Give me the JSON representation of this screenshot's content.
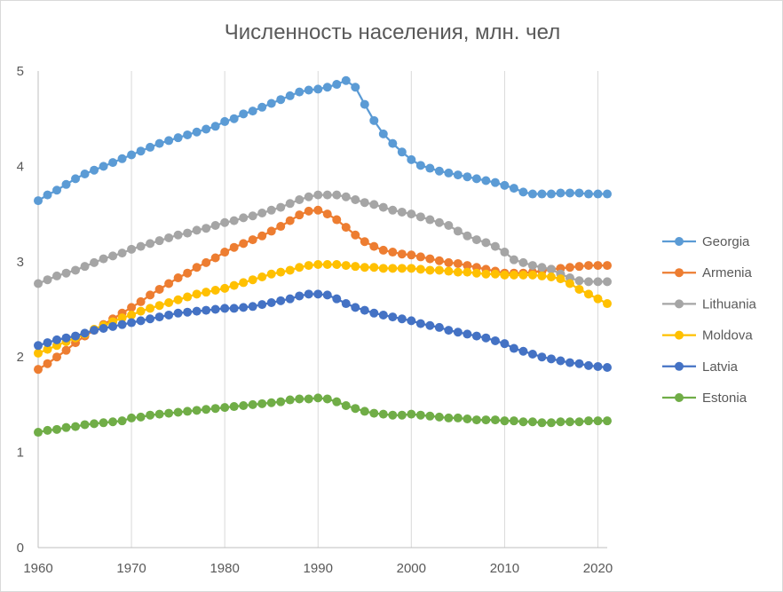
{
  "chart_data": {
    "type": "line",
    "title": "Численность населения, млн. чел",
    "xlabel": "",
    "ylabel": "",
    "xlim": [
      1960,
      2021
    ],
    "ylim": [
      0,
      5
    ],
    "x_ticks": [
      1960,
      1970,
      1980,
      1990,
      2000,
      2010,
      2020
    ],
    "y_ticks": [
      0,
      1,
      2,
      3,
      4,
      5
    ],
    "grid": "vertical",
    "legend_position": "right",
    "x": [
      1960,
      1961,
      1962,
      1963,
      1964,
      1965,
      1966,
      1967,
      1968,
      1969,
      1970,
      1971,
      1972,
      1973,
      1974,
      1975,
      1976,
      1977,
      1978,
      1979,
      1980,
      1981,
      1982,
      1983,
      1984,
      1985,
      1986,
      1987,
      1988,
      1989,
      1990,
      1991,
      1992,
      1993,
      1994,
      1995,
      1996,
      1997,
      1998,
      1999,
      2000,
      2001,
      2002,
      2003,
      2004,
      2005,
      2006,
      2007,
      2008,
      2009,
      2010,
      2011,
      2012,
      2013,
      2014,
      2015,
      2016,
      2017,
      2018,
      2019,
      2020,
      2021
    ],
    "series": [
      {
        "name": "Georgia",
        "color": "#5b9bd5",
        "values": [
          3.64,
          3.7,
          3.75,
          3.81,
          3.87,
          3.92,
          3.96,
          4.0,
          4.04,
          4.08,
          4.12,
          4.16,
          4.2,
          4.24,
          4.27,
          4.3,
          4.33,
          4.36,
          4.39,
          4.42,
          4.47,
          4.5,
          4.55,
          4.58,
          4.62,
          4.66,
          4.7,
          4.74,
          4.78,
          4.8,
          4.81,
          4.83,
          4.86,
          4.9,
          4.83,
          4.65,
          4.48,
          4.34,
          4.24,
          4.15,
          4.07,
          4.01,
          3.98,
          3.95,
          3.93,
          3.91,
          3.89,
          3.87,
          3.85,
          3.83,
          3.8,
          3.77,
          3.73,
          3.71,
          3.71,
          3.71,
          3.72,
          3.72,
          3.72,
          3.71,
          3.71,
          3.71
        ]
      },
      {
        "name": "Armenia",
        "color": "#ed7d31",
        "values": [
          1.87,
          1.93,
          2.0,
          2.07,
          2.15,
          2.22,
          2.28,
          2.34,
          2.4,
          2.46,
          2.52,
          2.58,
          2.65,
          2.71,
          2.77,
          2.83,
          2.88,
          2.94,
          2.99,
          3.04,
          3.1,
          3.15,
          3.19,
          3.23,
          3.27,
          3.32,
          3.37,
          3.43,
          3.49,
          3.53,
          3.54,
          3.5,
          3.44,
          3.36,
          3.28,
          3.21,
          3.16,
          3.12,
          3.1,
          3.08,
          3.07,
          3.05,
          3.03,
          3.01,
          2.99,
          2.98,
          2.96,
          2.94,
          2.92,
          2.9,
          2.88,
          2.88,
          2.88,
          2.89,
          2.9,
          2.92,
          2.93,
          2.94,
          2.95,
          2.96,
          2.96,
          2.96
        ]
      },
      {
        "name": "Lithuania",
        "color": "#a5a5a5",
        "values": [
          2.77,
          2.81,
          2.85,
          2.88,
          2.91,
          2.95,
          2.99,
          3.03,
          3.06,
          3.09,
          3.13,
          3.16,
          3.19,
          3.22,
          3.25,
          3.28,
          3.3,
          3.33,
          3.35,
          3.38,
          3.41,
          3.43,
          3.46,
          3.48,
          3.51,
          3.54,
          3.57,
          3.61,
          3.65,
          3.68,
          3.7,
          3.7,
          3.7,
          3.68,
          3.65,
          3.62,
          3.6,
          3.57,
          3.54,
          3.52,
          3.5,
          3.47,
          3.44,
          3.41,
          3.38,
          3.32,
          3.27,
          3.23,
          3.2,
          3.16,
          3.1,
          3.02,
          2.99,
          2.96,
          2.94,
          2.92,
          2.87,
          2.83,
          2.8,
          2.79,
          2.79,
          2.79
        ]
      },
      {
        "name": "Moldova",
        "color": "#ffc000",
        "values": [
          2.04,
          2.08,
          2.12,
          2.16,
          2.2,
          2.24,
          2.29,
          2.33,
          2.37,
          2.41,
          2.44,
          2.48,
          2.51,
          2.54,
          2.57,
          2.6,
          2.63,
          2.66,
          2.68,
          2.7,
          2.72,
          2.75,
          2.78,
          2.81,
          2.84,
          2.87,
          2.89,
          2.91,
          2.94,
          2.96,
          2.97,
          2.97,
          2.97,
          2.96,
          2.95,
          2.94,
          2.94,
          2.93,
          2.93,
          2.93,
          2.93,
          2.92,
          2.91,
          2.91,
          2.9,
          2.89,
          2.89,
          2.88,
          2.87,
          2.87,
          2.86,
          2.86,
          2.86,
          2.86,
          2.85,
          2.84,
          2.82,
          2.77,
          2.71,
          2.66,
          2.61,
          2.56
        ]
      },
      {
        "name": "Latvia",
        "color": "#4472c4",
        "values": [
          2.12,
          2.15,
          2.18,
          2.2,
          2.22,
          2.25,
          2.28,
          2.3,
          2.32,
          2.34,
          2.36,
          2.38,
          2.4,
          2.42,
          2.44,
          2.46,
          2.47,
          2.48,
          2.49,
          2.5,
          2.51,
          2.51,
          2.52,
          2.53,
          2.55,
          2.57,
          2.59,
          2.61,
          2.64,
          2.66,
          2.66,
          2.65,
          2.61,
          2.56,
          2.52,
          2.49,
          2.46,
          2.44,
          2.42,
          2.4,
          2.38,
          2.35,
          2.33,
          2.31,
          2.28,
          2.26,
          2.24,
          2.22,
          2.2,
          2.17,
          2.14,
          2.09,
          2.06,
          2.03,
          2.0,
          1.98,
          1.96,
          1.94,
          1.93,
          1.91,
          1.9,
          1.89
        ]
      },
      {
        "name": "Estonia",
        "color": "#70ad47",
        "values": [
          1.21,
          1.23,
          1.24,
          1.26,
          1.27,
          1.29,
          1.3,
          1.31,
          1.32,
          1.33,
          1.36,
          1.37,
          1.39,
          1.4,
          1.41,
          1.42,
          1.43,
          1.44,
          1.45,
          1.46,
          1.47,
          1.48,
          1.49,
          1.5,
          1.51,
          1.52,
          1.53,
          1.55,
          1.56,
          1.56,
          1.57,
          1.56,
          1.53,
          1.49,
          1.46,
          1.43,
          1.41,
          1.4,
          1.39,
          1.39,
          1.4,
          1.39,
          1.38,
          1.37,
          1.36,
          1.36,
          1.35,
          1.34,
          1.34,
          1.34,
          1.33,
          1.33,
          1.32,
          1.32,
          1.31,
          1.31,
          1.32,
          1.32,
          1.32,
          1.33,
          1.33,
          1.33
        ]
      }
    ]
  }
}
